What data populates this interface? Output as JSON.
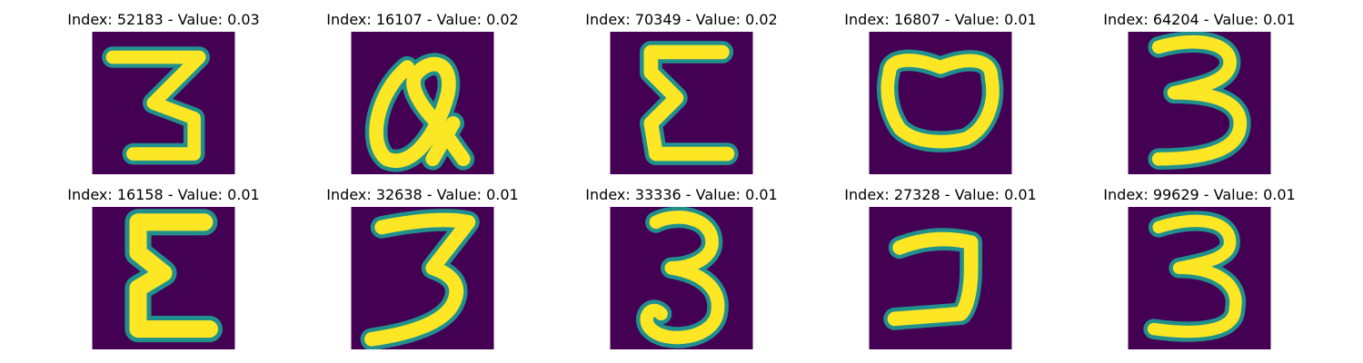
{
  "figure": {
    "colormap": "viridis",
    "background_color": "#440154",
    "foreground_color": "#fde725",
    "edge_color": "#21908d",
    "tiles": [
      {
        "caption": "Index: 52183 - Value: 0.03",
        "glyph": "3"
      },
      {
        "caption": "Index: 16107 - Value: 0.02",
        "glyph": "a"
      },
      {
        "caption": "Index: 70349 - Value: 0.02",
        "glyph": "E"
      },
      {
        "caption": "Index: 16807 - Value: 0.01",
        "glyph": "O"
      },
      {
        "caption": "Index: 64204 - Value: 0.01",
        "glyph": "3"
      },
      {
        "caption": "Index: 16158 - Value: 0.01",
        "glyph": "E"
      },
      {
        "caption": "Index: 32638 - Value: 0.01",
        "glyph": "3"
      },
      {
        "caption": "Index: 33336 - Value: 0.01",
        "glyph": "3"
      },
      {
        "caption": "Index: 27328 - Value: 0.01",
        "glyph": "J"
      },
      {
        "caption": "Index: 99629 - Value: 0.01",
        "glyph": "3"
      }
    ]
  }
}
